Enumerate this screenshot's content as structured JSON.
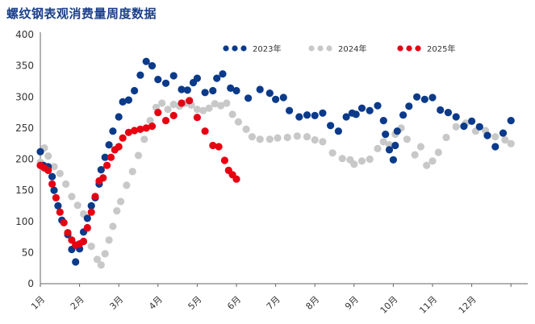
{
  "title": "螺纹钢表观消费量周度数据",
  "chart_data": {
    "type": "scatter",
    "ylim": [
      0,
      400
    ],
    "yticks": [
      0,
      50,
      100,
      150,
      200,
      250,
      300,
      350,
      400
    ],
    "categories": [
      "1月",
      "2月",
      "3月",
      "4月",
      "5月",
      "6月",
      "7月",
      "8月",
      "9月",
      "10月",
      "11月",
      "12月"
    ],
    "legend_position": "top-right",
    "series": [
      {
        "name": "2023年",
        "color": "#0b3a8a",
        "x": [
          0.0,
          0.08,
          0.2,
          0.3,
          0.35,
          0.45,
          0.55,
          0.7,
          0.8,
          0.9,
          1.0,
          1.1,
          1.2,
          1.3,
          1.4,
          1.5,
          1.55,
          1.65,
          1.75,
          1.85,
          2.0,
          2.1,
          2.25,
          2.4,
          2.55,
          2.7,
          2.85,
          3.0,
          3.2,
          3.4,
          3.6,
          3.75,
          3.9,
          4.0,
          4.2,
          4.4,
          4.5,
          4.65,
          4.85,
          5.0,
          5.3,
          5.6,
          5.85,
          6.0,
          6.2,
          6.35,
          6.6,
          6.8,
          7.0,
          7.2,
          7.4,
          7.6,
          7.8,
          7.95,
          8.05,
          8.2,
          8.4,
          8.6,
          8.75,
          8.8,
          8.9,
          9.0,
          9.05,
          9.1,
          9.25,
          9.4,
          9.6,
          9.8,
          10.0,
          10.2,
          10.4,
          10.6,
          10.8,
          11.0,
          11.2,
          11.4,
          11.6,
          11.8,
          12.0
        ],
        "values": [
          212,
          190,
          188,
          172,
          150,
          125,
          102,
          79,
          55,
          35,
          56,
          83,
          105,
          125,
          138,
          160,
          183,
          203,
          223,
          245,
          268,
          292,
          295,
          310,
          335,
          357,
          350,
          328,
          322,
          334,
          312,
          311,
          323,
          330,
          307,
          310,
          330,
          337,
          314,
          310,
          298,
          312,
          306,
          296,
          299,
          278,
          268,
          271,
          270,
          274,
          254,
          245,
          268,
          274,
          272,
          282,
          278,
          286,
          262,
          240,
          215,
          199,
          222,
          245,
          271,
          285,
          300,
          296,
          299,
          279,
          275,
          268,
          253,
          261,
          252,
          238,
          220,
          242,
          262
        ]
      },
      {
        "name": "2024年",
        "color": "#c8c8c8",
        "x": [
          0.0,
          0.1,
          0.2,
          0.35,
          0.5,
          0.65,
          0.8,
          0.95,
          1.1,
          1.2,
          1.3,
          1.45,
          1.55,
          1.65,
          1.75,
          1.85,
          1.95,
          2.05,
          2.2,
          2.35,
          2.5,
          2.65,
          2.8,
          2.95,
          3.1,
          3.25,
          3.4,
          3.55,
          3.7,
          3.85,
          4.0,
          4.15,
          4.3,
          4.45,
          4.6,
          4.75,
          4.9,
          5.05,
          5.25,
          5.4,
          5.6,
          5.85,
          6.05,
          6.3,
          6.55,
          6.8,
          7.0,
          7.2,
          7.45,
          7.7,
          7.9,
          8.0,
          8.2,
          8.4,
          8.6,
          8.75,
          8.9,
          9.05,
          9.2,
          9.35,
          9.55,
          9.7,
          9.85,
          10.0,
          10.15,
          10.35,
          10.6,
          10.85,
          11.1,
          11.35,
          11.6,
          11.85,
          12.0
        ],
        "values": [
          195,
          218,
          205,
          188,
          177,
          160,
          140,
          126,
          112,
          88,
          60,
          39,
          30,
          48,
          70,
          92,
          117,
          132,
          158,
          180,
          206,
          232,
          262,
          283,
          290,
          280,
          288,
          285,
          290,
          287,
          280,
          278,
          282,
          289,
          286,
          290,
          272,
          260,
          248,
          236,
          232,
          232,
          234,
          235,
          237,
          236,
          231,
          228,
          210,
          201,
          199,
          192,
          197,
          200,
          217,
          228,
          223,
          240,
          250,
          232,
          207,
          220,
          190,
          197,
          211,
          235,
          252,
          258,
          245,
          246,
          236,
          231,
          225
        ]
      },
      {
        "name": "2025年",
        "color": "#e60012",
        "x": [
          0.0,
          0.1,
          0.2,
          0.3,
          0.4,
          0.5,
          0.6,
          0.7,
          0.8,
          0.9,
          1.0,
          1.1,
          1.2,
          1.3,
          1.4,
          1.5,
          1.6,
          1.7,
          1.8,
          1.9,
          2.0,
          2.1,
          2.25,
          2.4,
          2.55,
          2.7,
          2.85,
          3.0,
          3.2,
          3.4,
          3.6,
          3.8,
          4.0,
          4.2,
          4.4,
          4.55,
          4.7,
          4.8,
          4.9,
          5.0
        ],
        "values": [
          190,
          186,
          182,
          160,
          138,
          115,
          98,
          82,
          70,
          62,
          64,
          68,
          90,
          115,
          140,
          165,
          170,
          190,
          203,
          215,
          220,
          234,
          243,
          246,
          248,
          250,
          253,
          275,
          262,
          270,
          290,
          294,
          267,
          245,
          222,
          220,
          198,
          182,
          175,
          168
        ]
      }
    ]
  }
}
